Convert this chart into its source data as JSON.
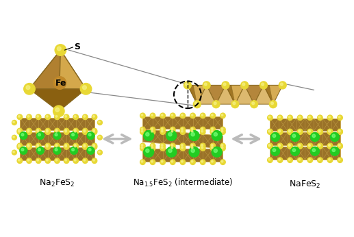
{
  "bg_color": "#ffffff",
  "s_color": "#e8d835",
  "s_highlight": "#f5f080",
  "fe_color": "#b07820",
  "fe_face1": "#d4a84b",
  "fe_face2": "#b08030",
  "fe_face3": "#8a6010",
  "na_color": "#22cc22",
  "na_highlight": "#77ff77",
  "label1": "Na$_2$FeS$_2$",
  "label2": "Na$_{1.5}$FeS$_2$ (intermediate)",
  "label3": "NaFeS$_2$",
  "s_label": "S",
  "fe_label": "Fe",
  "arrow_color": "#cccccc",
  "line_color": "#888888"
}
